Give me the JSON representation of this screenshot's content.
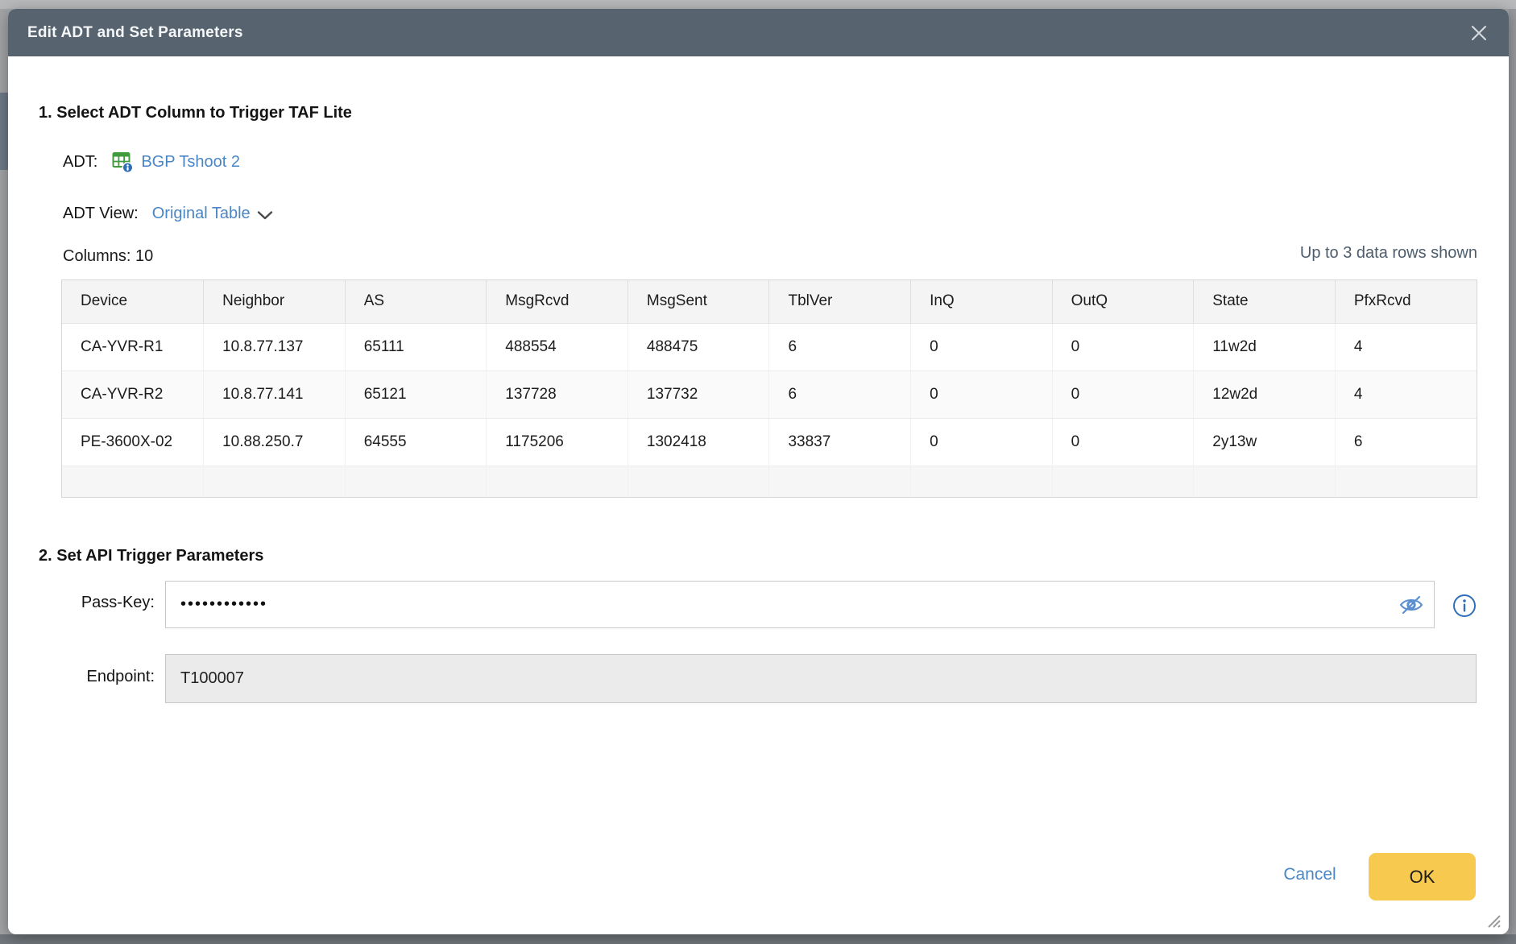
{
  "dialog": {
    "title": "Edit ADT and Set Parameters"
  },
  "section1": {
    "heading": "1. Select ADT Column to Trigger TAF Lite",
    "adt_label": "ADT:",
    "adt_link": "BGP Tshoot 2",
    "adt_view_label": "ADT View:",
    "adt_view_value": "Original Table",
    "columns_label": "Columns: 10",
    "rows_note": "Up to 3 data rows shown",
    "table": {
      "headers": [
        "Device",
        "Neighbor",
        "AS",
        "MsgRcvd",
        "MsgSent",
        "TblVer",
        "InQ",
        "OutQ",
        "State",
        "PfxRcvd"
      ],
      "rows": [
        [
          "CA-YVR-R1",
          "10.8.77.137",
          "65111",
          "488554",
          "488475",
          "6",
          "0",
          "0",
          "11w2d",
          "4"
        ],
        [
          "CA-YVR-R2",
          "10.8.77.141",
          "65121",
          "137728",
          "137732",
          "6",
          "0",
          "0",
          "12w2d",
          "4"
        ],
        [
          "PE-3600X-02",
          "10.88.250.7",
          "64555",
          "1175206",
          "1302418",
          "33837",
          "0",
          "0",
          "2y13w",
          "6"
        ]
      ]
    }
  },
  "section2": {
    "heading": "2. Set API Trigger Parameters",
    "passkey_label": "Pass-Key:",
    "passkey_value": "••••••••••••",
    "endpoint_label": "Endpoint:",
    "endpoint_value": "T100007"
  },
  "footer": {
    "cancel_label": "Cancel",
    "ok_label": "OK"
  },
  "icons": [
    "close-icon",
    "adt-table-icon",
    "info-badge-icon",
    "chevron-down-icon",
    "eye-slash-icon",
    "info-circle-icon",
    "resize-grip-icon"
  ],
  "colors": {
    "header_bg": "#576470",
    "link_blue": "#4a86c5",
    "ok_yellow": "#f7c94e",
    "note_slate": "#4d5d6c",
    "icon_green": "#3f9b3c",
    "icon_blue": "#2f6fb8"
  }
}
